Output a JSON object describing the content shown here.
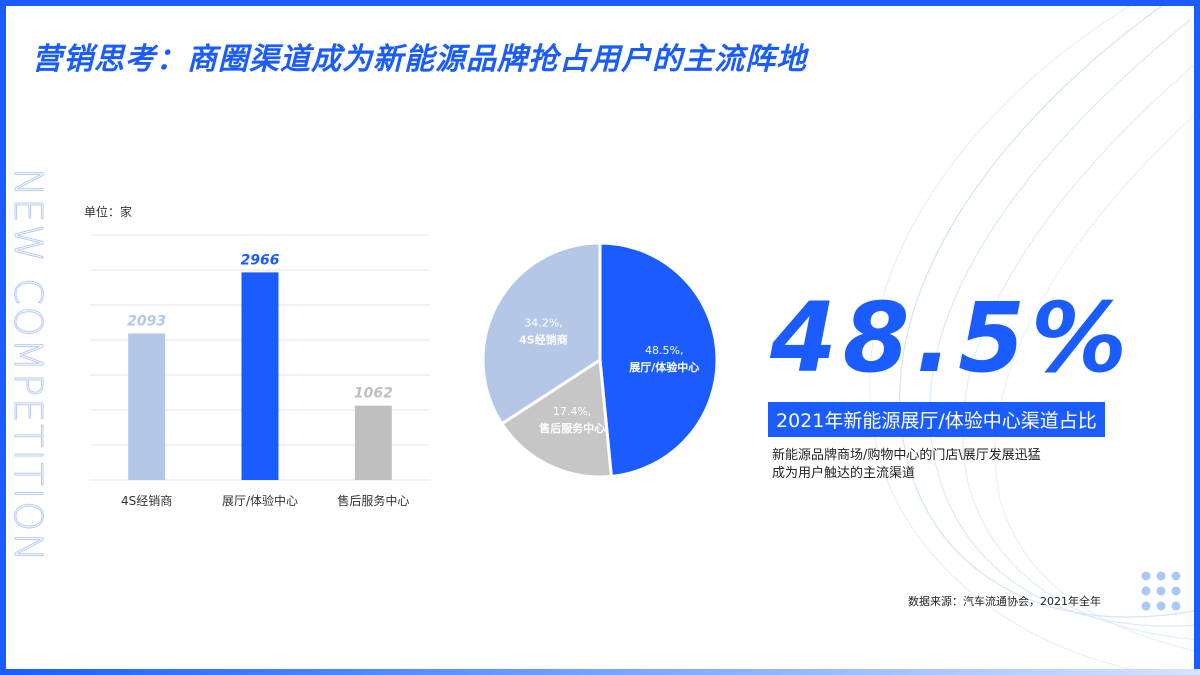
{
  "title": "营销思考：商圈渠道成为新能源品牌抢占用户的主流阵地",
  "side_word": "NEW COMPETITION",
  "unit_label": "单位：家",
  "highlight": {
    "value": "48.5%",
    "label": "2021年新能源展厅/体验中心渠道占比",
    "desc_lines": [
      "新能源品牌商场/购物中心的门店\\展厅发展迅猛",
      "成为用户触达的主流渠道"
    ]
  },
  "source": "数据来源：汽车流通协会，2021年全年",
  "colors": {
    "accent": "#1a5cff",
    "light_blue": "#b4c7e7",
    "gray": "#bfbfbf"
  },
  "chart_data": [
    {
      "type": "bar",
      "categories": [
        "4S经销商",
        "展厅/体验中心",
        "售后服务中心"
      ],
      "values": [
        2093,
        2966,
        1062
      ],
      "value_labels": [
        "2093",
        "2966",
        "1062"
      ],
      "colors": [
        "#b4c7e7",
        "#1a5cff",
        "#bfbfbf"
      ],
      "ylim": [
        0,
        3500
      ],
      "grid": true
    },
    {
      "type": "pie",
      "slices": [
        {
          "label": "展厅/体验中心",
          "value": 48.5,
          "pct_label": "48.5%,",
          "color": "#1a5cff"
        },
        {
          "label": "售后服务中心",
          "value": 17.4,
          "pct_label": "17.4%,",
          "color": "#c6c6c6"
        },
        {
          "label": "4S经销商",
          "value": 34.2,
          "pct_label": "34.2%,",
          "color": "#b4c7e7"
        }
      ]
    }
  ]
}
